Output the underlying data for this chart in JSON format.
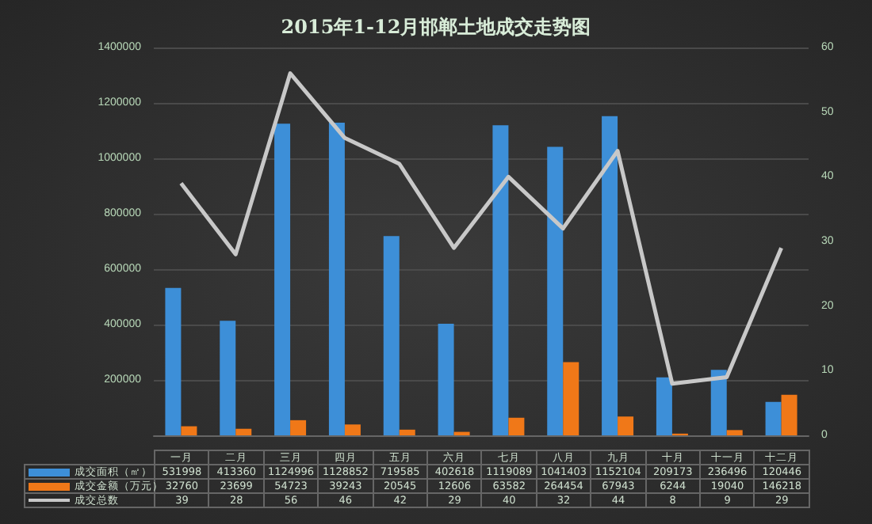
{
  "chart_data": {
    "type": "bar",
    "title": "2015年1-12月邯郸土地成交走势图",
    "categories": [
      "一月",
      "二月",
      "三月",
      "四月",
      "五月",
      "六月",
      "七月",
      "八月",
      "九月",
      "十月",
      "十一月",
      "十二月"
    ],
    "series": [
      {
        "name": "成交面积（㎡）",
        "color": "#3d8fd8",
        "values": [
          531998,
          413360,
          1124996,
          1128852,
          719585,
          402618,
          1119089,
          1041403,
          1152104,
          209173,
          236496,
          120446
        ]
      },
      {
        "name": "成交金额（万元）",
        "color": "#f07818",
        "values": [
          32760,
          23699,
          54723,
          39243,
          20545,
          12606,
          63582,
          264454,
          67943,
          6244,
          19040,
          146218
        ]
      },
      {
        "name": "成交总数",
        "type": "line",
        "axis": "y2",
        "color": "#c8c8c8",
        "values": [
          39,
          28,
          56,
          46,
          42,
          29,
          40,
          32,
          44,
          8,
          9,
          29
        ]
      }
    ],
    "ylim": [
      0,
      1400000
    ],
    "yticks": [
      {
        "value": 0,
        "label": null
      },
      200000,
      400000,
      600000,
      800000,
      1000000,
      1200000,
      1400000
    ],
    "y2lim": [
      0,
      60
    ],
    "y2ticks": [
      0,
      10,
      20,
      30,
      40,
      50,
      60
    ],
    "grid": "y",
    "legend": "bottom",
    "data_labels": true,
    "marker": "none",
    "line_style": "solid"
  }
}
